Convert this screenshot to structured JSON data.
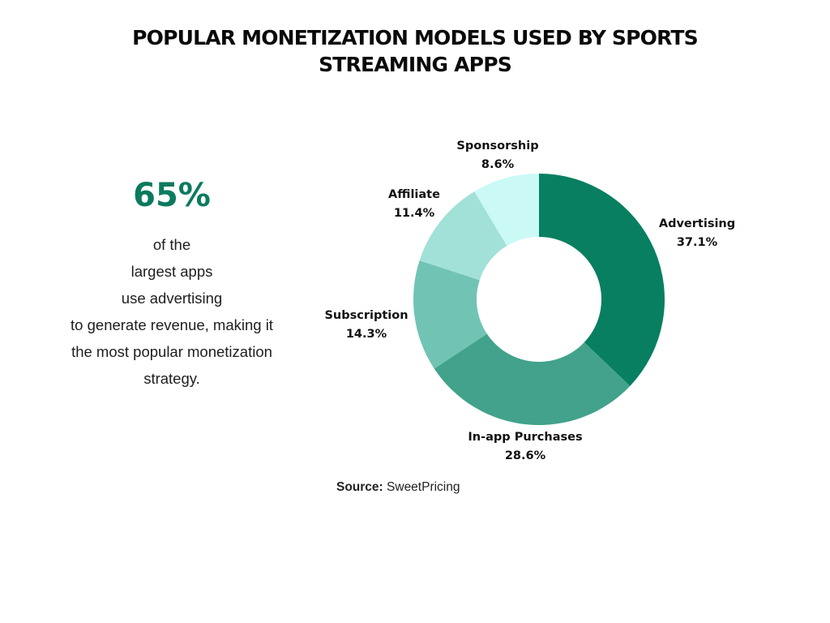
{
  "title_lines": [
    "POPULAR MONETIZATION MODELS USED BY SPORTS",
    "STREAMING APPS"
  ],
  "highlight": {
    "value": "65%",
    "lines": [
      "of the",
      "largest apps",
      "use advertising",
      "to generate revenue, making it",
      "the most popular monetization",
      "strategy."
    ]
  },
  "source": {
    "label": "Source:",
    "value": "SweetPricing"
  },
  "colors": {
    "accent": "#0b7a5e",
    "slices": [
      "#077f60",
      "#42a28b",
      "#71c4b4",
      "#a1e1d8",
      "#caf9f6"
    ]
  },
  "chart_data": {
    "type": "pie",
    "hole": "donut",
    "categories": [
      "Advertising",
      "In-app Purchases",
      "Subscription",
      "Affiliate",
      "Sponsorship"
    ],
    "values": [
      37.1,
      28.6,
      14.3,
      11.4,
      8.6
    ],
    "value_labels": [
      "37.1%",
      "28.6%",
      "14.3%",
      "11.4%",
      "8.6%"
    ],
    "start": "12 o'clock",
    "direction": "clockwise"
  }
}
